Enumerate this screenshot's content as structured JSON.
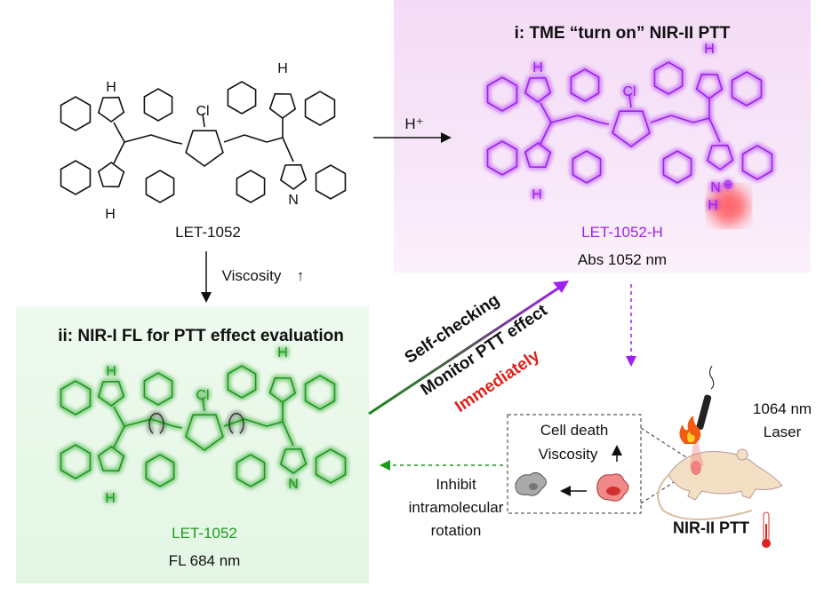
{
  "panel_i": {
    "title": "i: TME “turn on” NIR-II PTT",
    "compound": "LET-1052-H",
    "property": "Abs 1052 nm"
  },
  "panel_ii": {
    "title": "ii: NIR-I FL for PTT effect evaluation",
    "compound": "LET-1052",
    "property": "FL 684 nm"
  },
  "start": {
    "compound": "LET-1052"
  },
  "molecule_atoms": {
    "nh": "H",
    "n": "N",
    "cl": "Cl",
    "nplus": "N",
    "hplus_h": "H",
    "plus": "⊕"
  },
  "arrows": {
    "acid": "H⁺",
    "viscosity": "Viscosity",
    "viscosity_up": "↑"
  },
  "diagonal": {
    "line1": "Self-checking",
    "line2": "Monitor PTT effect",
    "line3": "Immediately"
  },
  "inset": {
    "line1": "Cell death",
    "line2": "Viscosity",
    "up": "↑"
  },
  "inhibit": {
    "line1": "Inhibit",
    "line2": "intramolecular",
    "line3": "rotation"
  },
  "laser": {
    "line1": "1064 nm",
    "line2": "Laser"
  },
  "ptt_label": "NIR-II PTT",
  "colors": {
    "purple": "#a020f0",
    "green": "#1a9a1a",
    "red": "#e0201a",
    "pink_bg": "#f6e2f7",
    "green_bg": "#e6f7e6"
  }
}
